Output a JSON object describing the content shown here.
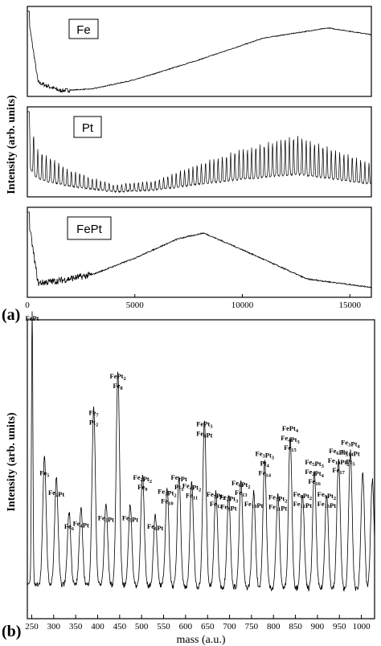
{
  "figure": {
    "label_a": "(a)",
    "label_b": "(b)"
  },
  "chart_data": [
    {
      "type": "line",
      "panel": "a",
      "ylabel": "Intensity (arb. units)",
      "x_ticks": [
        "0",
        "5000",
        "10000",
        "15000"
      ],
      "xlim": [
        0,
        16000
      ],
      "series": [
        {
          "name": "Fe",
          "envelope": "decaying spike then broad hump",
          "peak_mass": 14000,
          "x": [
            0,
            500,
            1500,
            3000,
            5000,
            8000,
            11000,
            14000,
            16000
          ],
          "y": [
            1.0,
            0.15,
            0.05,
            0.07,
            0.18,
            0.42,
            0.68,
            0.8,
            0.72
          ]
        },
        {
          "name": "Pt",
          "envelope": "periodic peaks, broad maximum",
          "peak_mass": 12500,
          "x": [
            0,
            500,
            2000,
            4000,
            6000,
            8000,
            10000,
            12500,
            16000
          ],
          "y": [
            1.0,
            0.55,
            0.3,
            0.12,
            0.18,
            0.38,
            0.55,
            0.72,
            0.38
          ]
        },
        {
          "name": "FePt",
          "envelope": "noisy low region then broad hump",
          "peak_mass": 8200,
          "x": [
            0,
            500,
            1500,
            3000,
            5000,
            7000,
            8200,
            10000,
            13000,
            16000
          ],
          "y": [
            1.0,
            0.15,
            0.18,
            0.25,
            0.45,
            0.68,
            0.75,
            0.55,
            0.2,
            0.1
          ]
        }
      ]
    },
    {
      "type": "line",
      "panel": "b",
      "xlabel": "mass (a.u.)",
      "ylabel": "Intensity (arb. units)",
      "x_ticks": [
        "250",
        "300",
        "350",
        "400",
        "450",
        "500",
        "550",
        "600",
        "650",
        "700",
        "750",
        "800",
        "850",
        "900",
        "950",
        "1000"
      ],
      "xlim": [
        240,
        1030
      ],
      "peaks": [
        {
          "mass": 251,
          "height": 1.0
        },
        {
          "mass": 279,
          "height": 0.45
        },
        {
          "mass": 306,
          "height": 0.38
        },
        {
          "mass": 335,
          "height": 0.26
        },
        {
          "mass": 362,
          "height": 0.27
        },
        {
          "mass": 391,
          "height": 0.63
        },
        {
          "mass": 419,
          "height": 0.29
        },
        {
          "mass": 446,
          "height": 0.76
        },
        {
          "mass": 474,
          "height": 0.29
        },
        {
          "mass": 502,
          "height": 0.4
        },
        {
          "mass": 531,
          "height": 0.26
        },
        {
          "mass": 558,
          "height": 0.35
        },
        {
          "mass": 585,
          "height": 0.4
        },
        {
          "mass": 614,
          "height": 0.37
        },
        {
          "mass": 643,
          "height": 0.59
        },
        {
          "mass": 669,
          "height": 0.34
        },
        {
          "mass": 698,
          "height": 0.33
        },
        {
          "mass": 726,
          "height": 0.38
        },
        {
          "mass": 755,
          "height": 0.34
        },
        {
          "mass": 780,
          "height": 0.45
        },
        {
          "mass": 810,
          "height": 0.33
        },
        {
          "mass": 838,
          "height": 0.54
        },
        {
          "mass": 866,
          "height": 0.34
        },
        {
          "mass": 893,
          "height": 0.42
        },
        {
          "mass": 921,
          "height": 0.34
        },
        {
          "mass": 948,
          "height": 0.46
        },
        {
          "mass": 975,
          "height": 0.49
        },
        {
          "mass": 1003,
          "height": 0.42
        },
        {
          "mass": 1025,
          "height": 0.39
        }
      ],
      "annotations": [
        {
          "mass": 251,
          "lines": [
            "FePt"
          ]
        },
        {
          "mass": 279,
          "lines": [
            "Fe5"
          ]
        },
        {
          "mass": 306,
          "lines": [
            "Fe2Pt"
          ]
        },
        {
          "mass": 335,
          "lines": [
            "Fe6"
          ]
        },
        {
          "mass": 362,
          "lines": [
            "Fe4Pt"
          ]
        },
        {
          "mass": 391,
          "lines": [
            "Fe7",
            "Pt2"
          ]
        },
        {
          "mass": 419,
          "lines": [
            "Fe3Pt"
          ]
        },
        {
          "mass": 446,
          "lines": [
            "FePt2",
            "Fe8"
          ]
        },
        {
          "mass": 474,
          "lines": [
            "Fe5Pt"
          ]
        },
        {
          "mass": 502,
          "lines": [
            "Fe2Pt2",
            "Fe9"
          ]
        },
        {
          "mass": 531,
          "lines": [
            "Fe6Pt"
          ]
        },
        {
          "mass": 558,
          "lines": [
            "Fe3Pt2",
            "Fe10"
          ]
        },
        {
          "mass": 585,
          "lines": [
            "Fe7Pt",
            "Pt3"
          ]
        },
        {
          "mass": 614,
          "lines": [
            "Fe4Pt2",
            "Fe11"
          ]
        },
        {
          "mass": 643,
          "lines": [
            "FePt3",
            "Fe8Pt"
          ]
        },
        {
          "mass": 669,
          "lines": [
            "Fe5Pt2",
            "Fe12"
          ]
        },
        {
          "mass": 698,
          "lines": [
            "Fe2Pt3",
            "Fe9Pt"
          ]
        },
        {
          "mass": 726,
          "lines": [
            "Fe6Pt2",
            "Fe13"
          ]
        },
        {
          "mass": 755,
          "lines": [
            "Fe10Pt"
          ]
        },
        {
          "mass": 780,
          "lines": [
            "Fe3Pt3",
            "Pt4",
            "Fe14"
          ]
        },
        {
          "mass": 810,
          "lines": [
            "Fe7Pt2",
            "Fe11Pt"
          ]
        },
        {
          "mass": 838,
          "lines": [
            "FePt4",
            "Fe4Pt3",
            "Fe15"
          ]
        },
        {
          "mass": 866,
          "lines": [
            "Fe8Pt2",
            "Fe12Pt"
          ]
        },
        {
          "mass": 893,
          "lines": [
            "Fe5Pt3",
            "Fe2Pt4",
            "Fe16"
          ]
        },
        {
          "mass": 921,
          "lines": [
            "Fe9Pt2",
            "Fe13Pt"
          ]
        },
        {
          "mass": 948,
          "lines": [
            "Fe6Pt3",
            "Fe10Pt2",
            "Fe17"
          ]
        },
        {
          "mass": 975,
          "lines": [
            "Fe3Pt4",
            "Fe14Pt",
            "Pt5"
          ]
        }
      ]
    }
  ]
}
